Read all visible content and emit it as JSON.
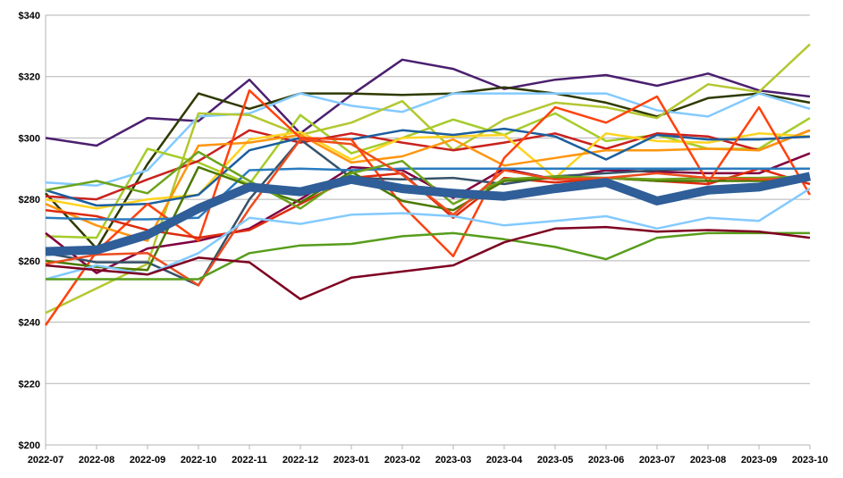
{
  "chart_data": {
    "type": "line",
    "title": "",
    "xlabel": "",
    "ylabel": "",
    "ylim": [
      200,
      340
    ],
    "y_ticks": [
      "$200",
      "$220",
      "$240",
      "$260",
      "$280",
      "$300",
      "$320",
      "$340"
    ],
    "y_tick_values": [
      200,
      220,
      240,
      260,
      280,
      300,
      320,
      340
    ],
    "categories": [
      "2022-07",
      "2022-08",
      "2022-09",
      "2022-10",
      "2022-11",
      "2022-12",
      "2023-01",
      "2023-02",
      "2023-03",
      "2023-04",
      "2023-05",
      "2023-06",
      "2023-07",
      "2023-08",
      "2023-09",
      "2023-10"
    ],
    "grid": "horizontal",
    "legend": "none",
    "series": [
      {
        "color": "#4B1F6F",
        "width": 2.5,
        "values": [
          300,
          297.5,
          306.5,
          305.5,
          319,
          301.5,
          314,
          325.5,
          322.5,
          316,
          319,
          320.5,
          317,
          321,
          315.5,
          313.5
        ]
      },
      {
        "color": "#2E3A00",
        "width": 2.5,
        "values": [
          282,
          264,
          291.5,
          314.5,
          309.5,
          314.5,
          314.5,
          314,
          314.5,
          316.5,
          314.5,
          311.5,
          307,
          313,
          314.5,
          311.5
        ]
      },
      {
        "color": "#83CAFF",
        "width": 2.5,
        "values": [
          285.5,
          284.5,
          289.5,
          307,
          308,
          314.5,
          310.5,
          308.5,
          314.5,
          314.5,
          314.5,
          314.5,
          309,
          307,
          314.5,
          309.5
        ]
      },
      {
        "color": "#B4C731",
        "width": 2.5,
        "values": [
          243,
          251,
          259,
          308,
          307.5,
          301,
          305,
          312,
          296,
          306,
          311.5,
          310,
          306.5,
          317.5,
          315,
          330.5
        ]
      },
      {
        "color": "#A5CC2A",
        "width": 2.5,
        "values": [
          268,
          267.5,
          296.5,
          292,
          285,
          307.5,
          295,
          300,
          306,
          301,
          308,
          299,
          301,
          296.5,
          296.5,
          306.5
        ]
      },
      {
        "color": "#C9211E",
        "width": 2.5,
        "values": [
          281,
          280,
          286.5,
          292.5,
          302.5,
          298.5,
          301.5,
          298.5,
          296,
          298.5,
          301.5,
          296.5,
          301.5,
          300.5,
          296,
          302.5
        ]
      },
      {
        "color": "#FFD320",
        "width": 2.5,
        "values": [
          280,
          277,
          280,
          281.5,
          299.5,
          302,
          293,
          300,
          300.5,
          301,
          287,
          301.5,
          299,
          298.5,
          301.5,
          300.5
        ]
      },
      {
        "color": "#FF950E",
        "width": 2.5,
        "values": [
          278.5,
          271.5,
          266.5,
          297.5,
          298.5,
          301,
          292,
          294,
          299.5,
          291,
          293.5,
          296,
          296,
          296.5,
          296,
          302.5
        ]
      },
      {
        "color": "#1C5E9E",
        "width": 2.5,
        "values": [
          283,
          278,
          278.5,
          281.5,
          296,
          300,
          299.5,
          302.5,
          301,
          303,
          300.5,
          293,
          301,
          299.5,
          299.5,
          300.5
        ]
      },
      {
        "color": "#800040",
        "width": 2.5,
        "values": [
          269,
          256,
          264,
          266.5,
          270.5,
          280,
          290.5,
          289.5,
          280.5,
          290,
          286.5,
          289.5,
          289,
          288.5,
          288.5,
          295
        ]
      },
      {
        "color": "#FF420E",
        "width": 2.5,
        "values": [
          239,
          263,
          278.5,
          266.5,
          315.5,
          300,
          299.5,
          278,
          261.5,
          293.5,
          310,
          305,
          313.5,
          285.5,
          310,
          281.5
        ]
      },
      {
        "color": "#DD2B0F",
        "width": 2.5,
        "values": [
          276.5,
          274.5,
          270,
          267.5,
          270,
          278.5,
          287,
          288.5,
          274,
          287,
          285.5,
          287,
          286,
          285,
          290,
          285
        ]
      },
      {
        "color": "#355269",
        "width": 2.5,
        "values": [
          262.5,
          259.5,
          259.5,
          252,
          280,
          299.5,
          287,
          286.5,
          287,
          285,
          287.5,
          288.5,
          289.5,
          290,
          290,
          290
        ]
      },
      {
        "color": "#2A7BBF",
        "width": 2.5,
        "values": [
          274,
          273.5,
          273.5,
          274,
          289.5,
          290,
          289.5,
          290,
          290,
          290,
          290,
          290,
          290,
          290,
          290,
          290
        ]
      },
      {
        "color": "#4B7800",
        "width": 2.5,
        "values": [
          260,
          258,
          257,
          290.5,
          284.5,
          279,
          289,
          279.5,
          276.5,
          286,
          287,
          287,
          286,
          286,
          286,
          286.5
        ]
      },
      {
        "color": "#6CA31B",
        "width": 2.5,
        "values": [
          283,
          286,
          282,
          295.5,
          286,
          277,
          288.5,
          292.5,
          278.5,
          286.5,
          287.5,
          287,
          286.5,
          287,
          287,
          287.5
        ]
      },
      {
        "color": "#ED4C1E",
        "width": 2.5,
        "values": [
          259,
          262,
          262.5,
          252,
          277,
          299.5,
          298,
          288,
          275,
          289.5,
          286.5,
          287,
          288.5,
          287,
          286.5,
          287
        ]
      },
      {
        "color": "#83CAFF",
        "width": 2.5,
        "values": [
          254,
          258.5,
          255.5,
          262.5,
          274,
          272,
          275,
          275.5,
          274.5,
          271.5,
          273,
          274.5,
          270.5,
          274,
          273,
          283.5
        ]
      },
      {
        "color": "#579D1C",
        "width": 2.5,
        "values": [
          254,
          254,
          254,
          254,
          262.5,
          265,
          265.5,
          268,
          269,
          267,
          264.5,
          260.5,
          267.5,
          269,
          269,
          269
        ]
      },
      {
        "color": "#7E0021",
        "width": 2.5,
        "values": [
          258.5,
          257,
          255.5,
          261,
          259.5,
          247.5,
          254.5,
          256.5,
          258.5,
          266,
          270.5,
          271,
          269.5,
          270,
          269.5,
          267.5
        ]
      },
      {
        "color": "#2F5E98",
        "width": 10,
        "values": [
          263,
          263.5,
          268.5,
          277,
          284,
          282.5,
          286.5,
          283.5,
          282,
          281,
          283.5,
          285.5,
          279.5,
          283,
          284,
          287.5
        ]
      }
    ]
  }
}
